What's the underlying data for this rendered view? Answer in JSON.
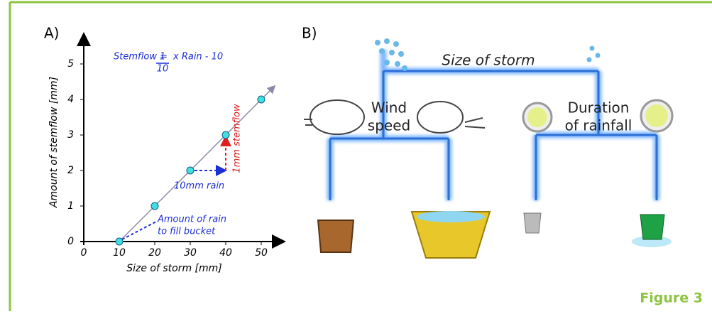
{
  "panels": {
    "a": "A)",
    "b": "B)"
  },
  "figure_label": "Figure 3",
  "chart_data": {
    "type": "scatter",
    "x_label": "Size of storm [mm]",
    "y_label": "Amount of stemflow [mm]",
    "x": [
      10,
      20,
      30,
      40,
      50
    ],
    "values": [
      0,
      1,
      2,
      3,
      4
    ],
    "color": "#3fe0e0",
    "xlim": [
      0,
      55
    ],
    "ylim": [
      0,
      5.7
    ],
    "xticks": [
      0,
      10,
      20,
      30,
      40,
      50
    ],
    "yticks": [
      0,
      1,
      2,
      3,
      4,
      5
    ],
    "annotations": {
      "formula_left": "Stemflow =",
      "formula_num": "1",
      "formula_den": "10",
      "formula_right": "x Rain - 10",
      "rain_step": "10mm rain",
      "stemflow_step": "1mm stemflow",
      "bucket": [
        "Amount of rain",
        "to fill bucket"
      ]
    }
  },
  "diagram": {
    "root": "Size of storm",
    "left": [
      "Wind",
      "speed"
    ],
    "right": [
      "Duration",
      "of rainfall"
    ]
  }
}
